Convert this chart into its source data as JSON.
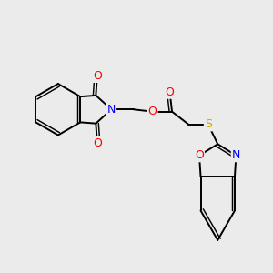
{
  "bg_color": "#ebebeb",
  "atom_colors": {
    "C": "#000000",
    "N": "#0000ff",
    "O": "#ff0000",
    "S": "#ccaa00"
  },
  "line_color": "#000000",
  "line_width": 1.4,
  "figsize": [
    3.0,
    3.0
  ],
  "dpi": 100
}
